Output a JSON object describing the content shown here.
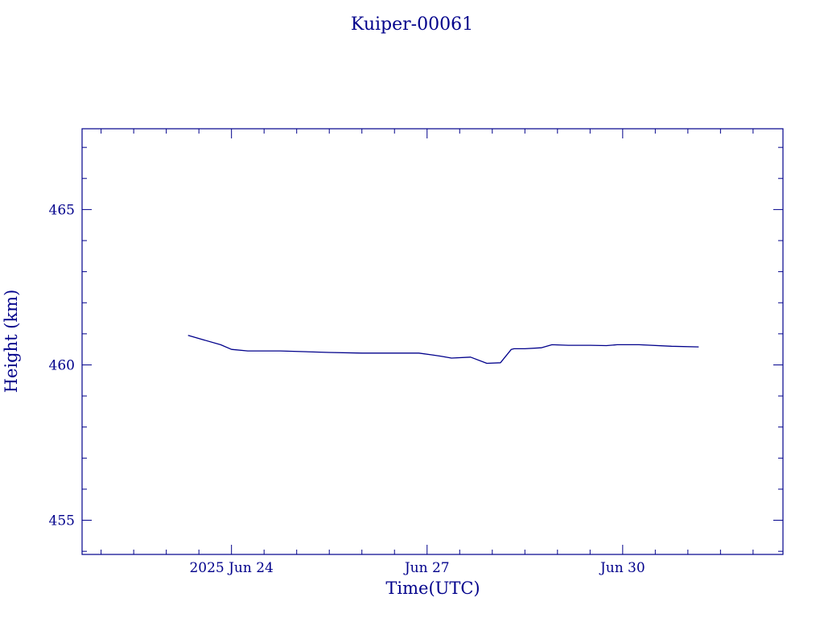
{
  "chart_data": {
    "type": "line",
    "title": "Kuiper-00061",
    "xlabel": "Time(UTC)",
    "ylabel": "Height (km)",
    "color": "#00008b",
    "xlim": [
      "2025-06-21T17:00",
      "2025-07-02T11:00"
    ],
    "ylim": [
      453.9,
      467.6
    ],
    "x_tick_labels": [
      {
        "x": "2025-06-24T00:00",
        "label": "2025 Jun 24"
      },
      {
        "x": "2025-06-27T00:00",
        "label": "Jun 27"
      },
      {
        "x": "2025-06-30T00:00",
        "label": "Jun 30"
      }
    ],
    "y_tick_labels": [
      {
        "y": 455,
        "label": "455"
      },
      {
        "y": 460,
        "label": "460"
      },
      {
        "y": 465,
        "label": "465"
      }
    ],
    "series": [
      {
        "x": [
          "2025-06-23T08:00",
          "2025-06-23T20:00",
          "2025-06-24T00:00",
          "2025-06-24T06:00",
          "2025-06-24T18:00",
          "2025-06-25T12:00",
          "2025-06-26T00:00",
          "2025-06-26T12:00",
          "2025-06-26T21:00",
          "2025-06-27T02:00",
          "2025-06-27T05:00",
          "2025-06-27T09:00",
          "2025-06-27T16:00",
          "2025-06-27T22:00",
          "2025-06-28T03:00",
          "2025-06-28T07:00",
          "2025-06-28T08:00",
          "2025-06-28T12:00",
          "2025-06-28T18:00",
          "2025-06-28T22:00",
          "2025-06-29T04:00",
          "2025-06-29T12:00",
          "2025-06-29T18:00",
          "2025-06-29T22:00",
          "2025-06-30T06:00",
          "2025-06-30T18:00",
          "2025-07-01T04:00"
        ],
        "y": [
          460.95,
          460.65,
          460.5,
          460.45,
          460.45,
          460.4,
          460.38,
          460.38,
          460.38,
          460.32,
          460.28,
          460.22,
          460.25,
          460.05,
          460.07,
          460.5,
          460.52,
          460.52,
          460.55,
          460.65,
          460.63,
          460.63,
          460.62,
          460.65,
          460.65,
          460.6,
          460.58
        ]
      }
    ]
  }
}
